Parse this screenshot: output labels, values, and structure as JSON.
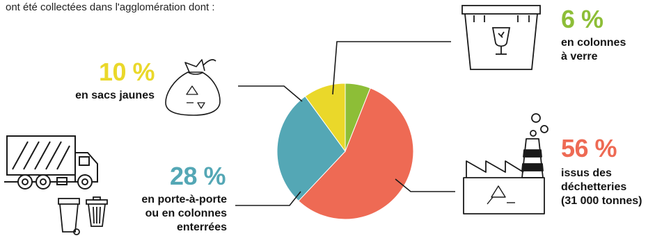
{
  "intro_text": "ont été collectées dans l'agglomération dont :",
  "colors": {
    "yellow": "#EAD82A",
    "green": "#8DBE37",
    "blue": "#54A7B5",
    "red": "#EE6A54",
    "ink": "#1a1a1a"
  },
  "icons": [
    "recycling-bag-icon",
    "glass-container-icon",
    "garbage-truck-icon",
    "trash-bins-icon",
    "recycling-factory-icon"
  ],
  "chart_data": {
    "type": "pie",
    "title": "",
    "slices": [
      {
        "key": "verre",
        "value": 6,
        "percent_label": "6 %",
        "label_lines": [
          "en colonnes",
          "à verre"
        ],
        "color": "#8DBE37"
      },
      {
        "key": "dechetteries",
        "value": 56,
        "percent_label": "56 %",
        "label_lines": [
          "issus des",
          "déchetteries",
          "(31 000 tonnes)"
        ],
        "color": "#EE6A54"
      },
      {
        "key": "porte",
        "value": 28,
        "percent_label": "28 %",
        "label_lines": [
          "en porte-à-porte",
          "ou en colonnes",
          "enterrées"
        ],
        "color": "#54A7B5"
      },
      {
        "key": "sacs",
        "value": 10,
        "percent_label": "10 %",
        "label_lines": [
          "en sacs jaunes"
        ],
        "color": "#EAD82A"
      }
    ]
  }
}
